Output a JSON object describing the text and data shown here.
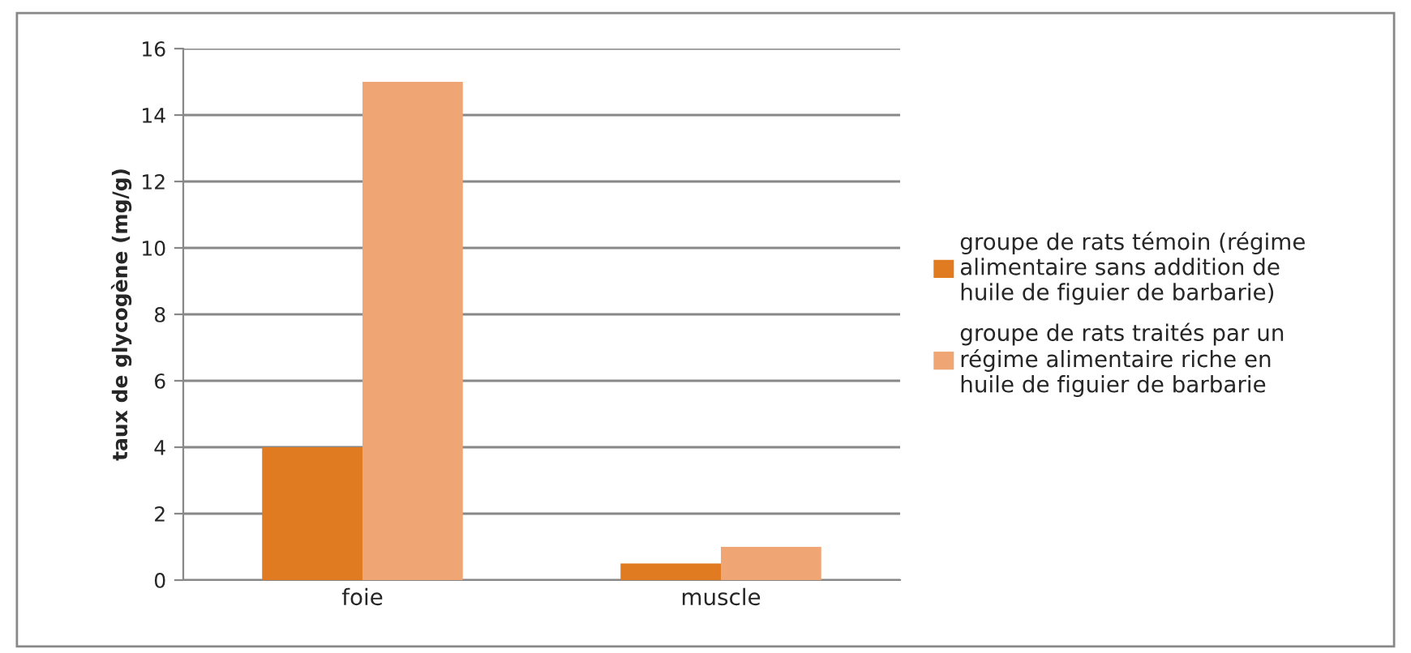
{
  "chart_data": {
    "type": "bar",
    "ylabel": "taux de glycogène (mg/g)",
    "categories": [
      "foie",
      "muscle"
    ],
    "series": [
      {
        "name": "groupe de rats témoin (régime\nalimentaire sans addition de\nhuile de figuier de barbarie)",
        "color": "#e07b22",
        "values": [
          4,
          0.5
        ]
      },
      {
        "name": "groupe de rats traités par un\nrégime alimentaire riche en\nhuile de figuier de barbarie",
        "color": "#f0a574",
        "values": [
          15,
          1
        ]
      }
    ],
    "ylim": [
      0,
      16
    ],
    "yticks": [
      0,
      2,
      4,
      6,
      8,
      10,
      12,
      14,
      16
    ],
    "grid": "y",
    "legend": "right"
  }
}
